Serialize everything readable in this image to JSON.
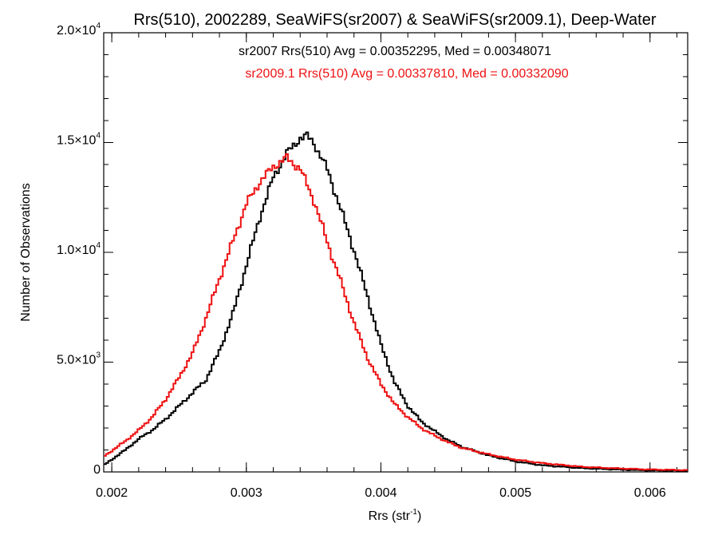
{
  "chart_data": {
    "type": "line",
    "title": "Rrs(510), 2002289, SeaWiFS(sr2007) & SeaWiFS(sr2009.1), Deep-Water",
    "xlabel_main": "Rrs (str",
    "xlabel_sup": "-1",
    "xlabel_tail": ")",
    "ylabel": "Number of Observations",
    "xlim": [
      0.00194,
      0.00628
    ],
    "ylim": [
      0,
      20000
    ],
    "xticks": [
      {
        "value": 0.002,
        "label": "0.002"
      },
      {
        "value": 0.003,
        "label": "0.003"
      },
      {
        "value": 0.004,
        "label": "0.004"
      },
      {
        "value": 0.005,
        "label": "0.005"
      },
      {
        "value": 0.006,
        "label": "0.006"
      }
    ],
    "yticks": [
      {
        "value": 0,
        "base": "0",
        "exp": ""
      },
      {
        "value": 5000,
        "base": "5.0×10",
        "exp": "3"
      },
      {
        "value": 10000,
        "base": "1.0×10",
        "exp": "4"
      },
      {
        "value": 15000,
        "base": "1.5×10",
        "exp": "4"
      },
      {
        "value": 20000,
        "base": "2.0×10",
        "exp": "4"
      }
    ],
    "annotations": [
      {
        "text": "sr2007 Rrs(510) Avg = 0.00352295, Med = 0.00348071",
        "color": "#000000"
      },
      {
        "text": "sr2009.1 Rrs(510) Avg = 0.00337810, Med = 0.00332090",
        "color": "#ee1111"
      }
    ],
    "series": [
      {
        "color": "#000000",
        "x": [
          0.00194,
          0.0021,
          0.0022,
          0.0023,
          0.0024,
          0.0025,
          0.0026,
          0.0027,
          0.0028,
          0.0029,
          0.003,
          0.0031,
          0.0032,
          0.0033,
          0.0034,
          0.00345,
          0.0035,
          0.0036,
          0.0037,
          0.0038,
          0.0039,
          0.004,
          0.0041,
          0.0042,
          0.0043,
          0.0044,
          0.0045,
          0.0046,
          0.0048,
          0.005,
          0.0052,
          0.0055,
          0.0058,
          0.006,
          0.00628
        ],
        "y": [
          300,
          1000,
          1500,
          1900,
          2400,
          3000,
          3600,
          4200,
          5500,
          7200,
          9400,
          11600,
          13400,
          14500,
          15200,
          15300,
          15000,
          13800,
          12000,
          10100,
          8000,
          5800,
          4100,
          3000,
          2300,
          1850,
          1450,
          1150,
          750,
          480,
          300,
          170,
          100,
          70,
          50
        ]
      },
      {
        "color": "#ee1111",
        "x": [
          0.00194,
          0.0021,
          0.0022,
          0.0023,
          0.0024,
          0.0025,
          0.0026,
          0.0027,
          0.0028,
          0.0029,
          0.003,
          0.0031,
          0.0032,
          0.0033,
          0.0034,
          0.0035,
          0.0036,
          0.0037,
          0.0038,
          0.0039,
          0.004,
          0.0041,
          0.0042,
          0.0043,
          0.0044,
          0.0045,
          0.0046,
          0.0048,
          0.005,
          0.0052,
          0.0055,
          0.0058,
          0.006,
          0.00628
        ],
        "y": [
          700,
          1400,
          1900,
          2500,
          3300,
          4300,
          5400,
          7000,
          8800,
          10500,
          12200,
          13200,
          13900,
          14300,
          13800,
          12400,
          10500,
          8700,
          6800,
          5200,
          4000,
          3100,
          2500,
          2000,
          1650,
          1350,
          1100,
          800,
          560,
          400,
          230,
          150,
          110,
          80
        ]
      }
    ]
  }
}
